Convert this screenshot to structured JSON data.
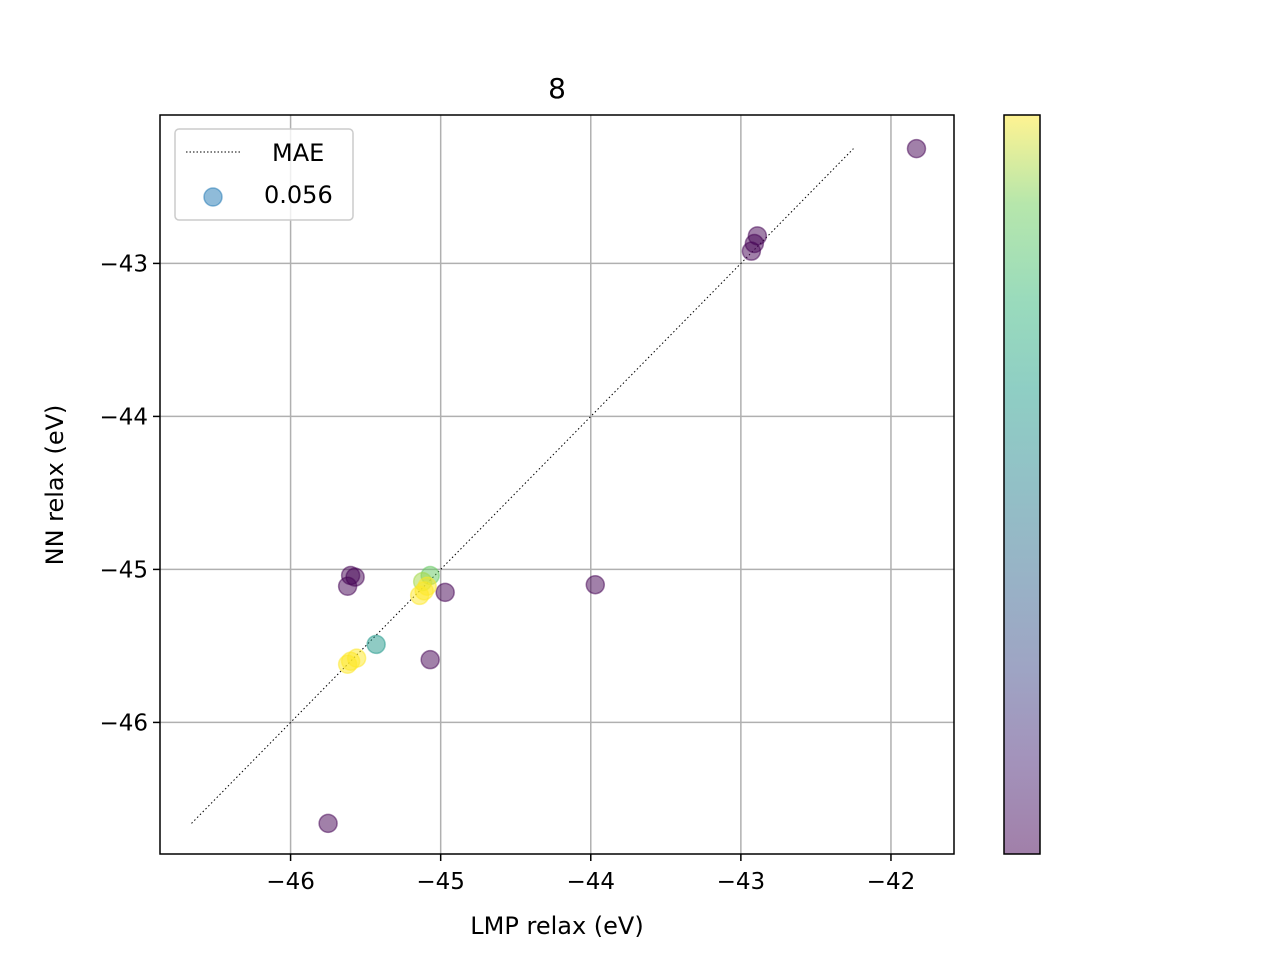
{
  "chart_data": {
    "type": "scatter",
    "title": "8",
    "xlabel": "LMP relax (eV)",
    "ylabel": "NN relax (eV)",
    "xlim": [
      -46.87,
      -41.58
    ],
    "ylim": [
      -46.86,
      -42.03
    ],
    "xticks": [
      -46,
      -45,
      -44,
      -43,
      -42
    ],
    "yticks": [
      -46,
      -45,
      -44,
      -43
    ],
    "xtick_labels": [
      "−46",
      "−45",
      "−44",
      "−43",
      "−42"
    ],
    "ytick_labels": [
      "−46",
      "−45",
      "−44",
      "−43"
    ],
    "grid": true,
    "legend": {
      "placement": "upper-left",
      "entries": [
        {
          "label": "MAE",
          "kind": "dotted-line"
        },
        {
          "label": "0.056",
          "kind": "marker"
        }
      ]
    },
    "reference_line": {
      "style": "dotted",
      "color": "#000000",
      "from": [
        -46.66,
        -46.66
      ],
      "to": [
        -42.25,
        -42.25
      ]
    },
    "colorbar": {
      "colormap": "viridis",
      "alpha": 0.5,
      "ticks": []
    },
    "legend_marker_color": "#1f77b4",
    "point_alpha": 0.5,
    "points": [
      {
        "x": -41.83,
        "y": -42.25,
        "c": 0.0
      },
      {
        "x": -42.89,
        "y": -42.82,
        "c": 0.0
      },
      {
        "x": -42.91,
        "y": -42.87,
        "c": 0.0
      },
      {
        "x": -42.93,
        "y": -42.92,
        "c": 0.0
      },
      {
        "x": -45.75,
        "y": -46.66,
        "c": 0.0
      },
      {
        "x": -43.97,
        "y": -45.1,
        "c": 0.0
      },
      {
        "x": -44.97,
        "y": -45.15,
        "c": 0.0
      },
      {
        "x": -45.07,
        "y": -45.59,
        "c": 0.0
      },
      {
        "x": -45.62,
        "y": -45.11,
        "c": 0.0
      },
      {
        "x": -45.6,
        "y": -45.04,
        "c": 0.0
      },
      {
        "x": -45.57,
        "y": -45.05,
        "c": 0.0
      },
      {
        "x": -45.43,
        "y": -45.49,
        "c": 0.6
      },
      {
        "x": -45.07,
        "y": -45.04,
        "c": 0.85
      },
      {
        "x": -45.12,
        "y": -45.08,
        "c": 0.92
      },
      {
        "x": -45.09,
        "y": -45.11,
        "c": 1.0
      },
      {
        "x": -45.11,
        "y": -45.14,
        "c": 1.0
      },
      {
        "x": -45.14,
        "y": -45.17,
        "c": 1.0
      },
      {
        "x": -45.62,
        "y": -45.62,
        "c": 1.0
      },
      {
        "x": -45.6,
        "y": -45.6,
        "c": 1.0
      },
      {
        "x": -45.56,
        "y": -45.58,
        "c": 1.0
      }
    ]
  }
}
